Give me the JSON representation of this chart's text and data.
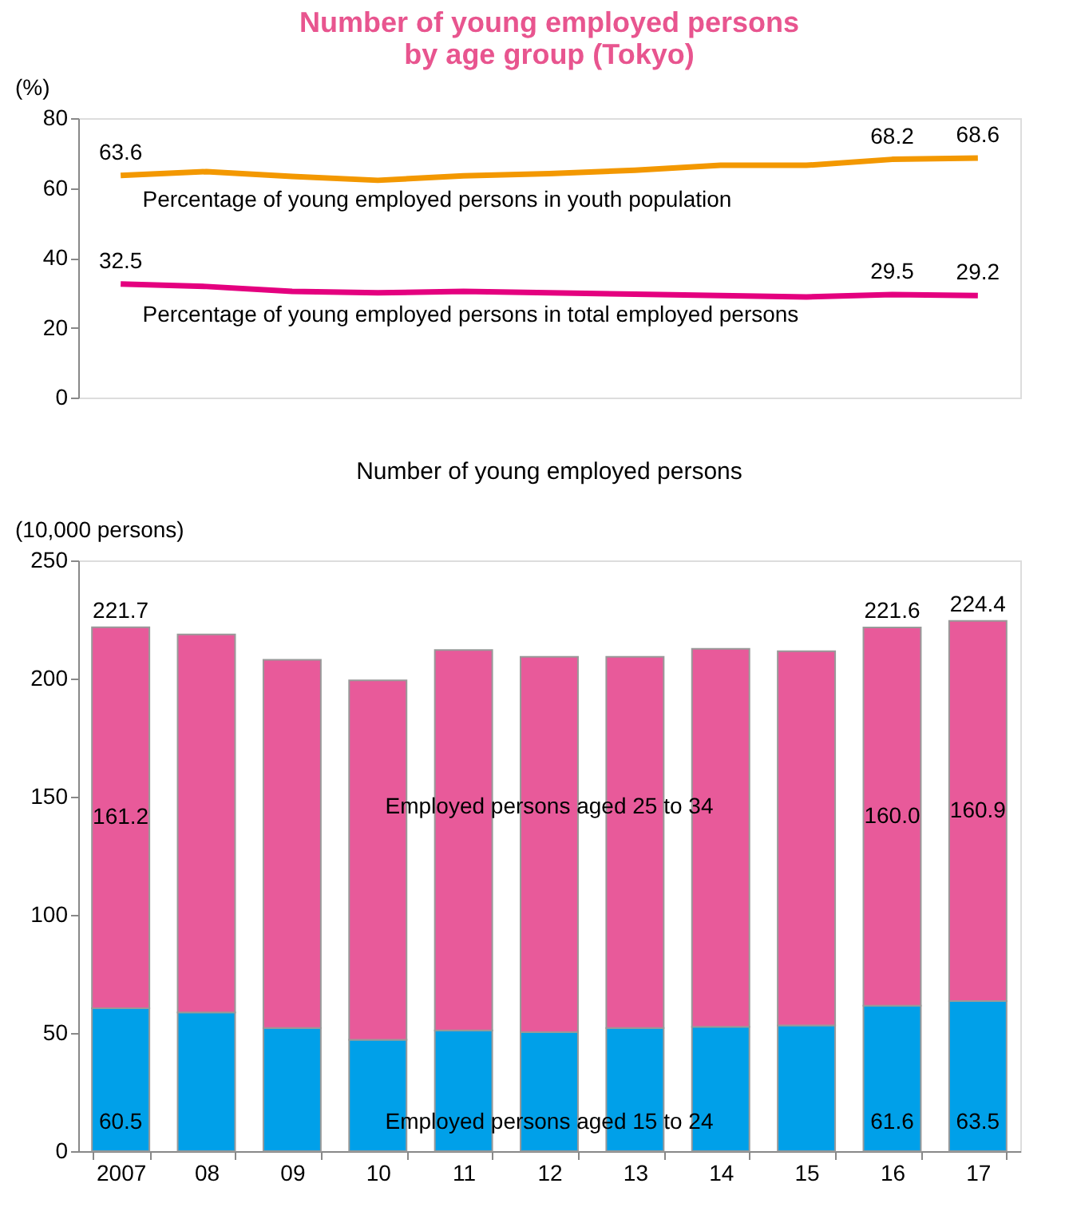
{
  "chart_data": [
    {
      "type": "line",
      "title": "Number of young employed persons\nby age group (Tokyo)",
      "ylabel": "(%)",
      "categories": [
        null,
        null,
        null,
        null,
        null,
        null,
        null,
        null,
        null,
        null,
        null
      ],
      "series": [
        {
          "name": "Percentage of young employed persons in youth population",
          "color": "#f39800",
          "values": [
            63.6,
            64.7,
            63.3,
            62.2,
            63.5,
            64.1,
            65.1,
            66.5,
            66.5,
            68.2,
            68.6
          ],
          "value_labels": [
            "63.6",
            null,
            null,
            null,
            null,
            null,
            null,
            null,
            null,
            "68.2",
            "68.6"
          ]
        },
        {
          "name": "Percentage of young employed persons in total employed persons",
          "color": "#e4007f",
          "values": [
            32.5,
            31.8,
            30.4,
            30.0,
            30.4,
            30.0,
            29.6,
            29.2,
            28.8,
            29.5,
            29.2
          ],
          "value_labels": [
            "32.5",
            null,
            null,
            null,
            null,
            null,
            null,
            null,
            null,
            "29.5",
            "29.2"
          ]
        }
      ],
      "ylim": [
        0,
        80
      ],
      "yticks": [
        0,
        20,
        40,
        60,
        80
      ],
      "tick_labels": "y",
      "line_style": "solid"
    },
    {
      "type": "bar",
      "title": "Number of young employed persons",
      "ylabel": "(10,000 persons)",
      "stacked": true,
      "categories": [
        "2007",
        "08",
        "09",
        "10",
        "11",
        "12",
        "13",
        "14",
        "15",
        "16",
        "17"
      ],
      "series": [
        {
          "name": "Employed persons aged 15 to 24",
          "color": "#00a0e9",
          "values": [
            60.5,
            58.7,
            52.1,
            47.1,
            51.1,
            50.3,
            52.1,
            52.6,
            53.2,
            61.6,
            63.5
          ],
          "value_labels": [
            "60.5",
            null,
            null,
            null,
            null,
            null,
            null,
            null,
            null,
            "61.6",
            "63.5"
          ]
        },
        {
          "name": "Employed persons aged 25 to 34",
          "color": "#e85a9a",
          "values": [
            161.2,
            160.0,
            155.8,
            152.1,
            161.0,
            158.9,
            157.1,
            160.0,
            158.4,
            160.0,
            160.9
          ],
          "value_labels": [
            "161.2",
            null,
            null,
            null,
            null,
            null,
            null,
            null,
            null,
            "160.0",
            "160.9"
          ]
        }
      ],
      "totals": [
        "221.7",
        null,
        null,
        null,
        null,
        null,
        null,
        null,
        null,
        "221.6",
        "224.4"
      ],
      "ylim": [
        0,
        250
      ],
      "yticks": [
        0,
        50,
        100,
        150,
        200,
        250
      ]
    }
  ]
}
